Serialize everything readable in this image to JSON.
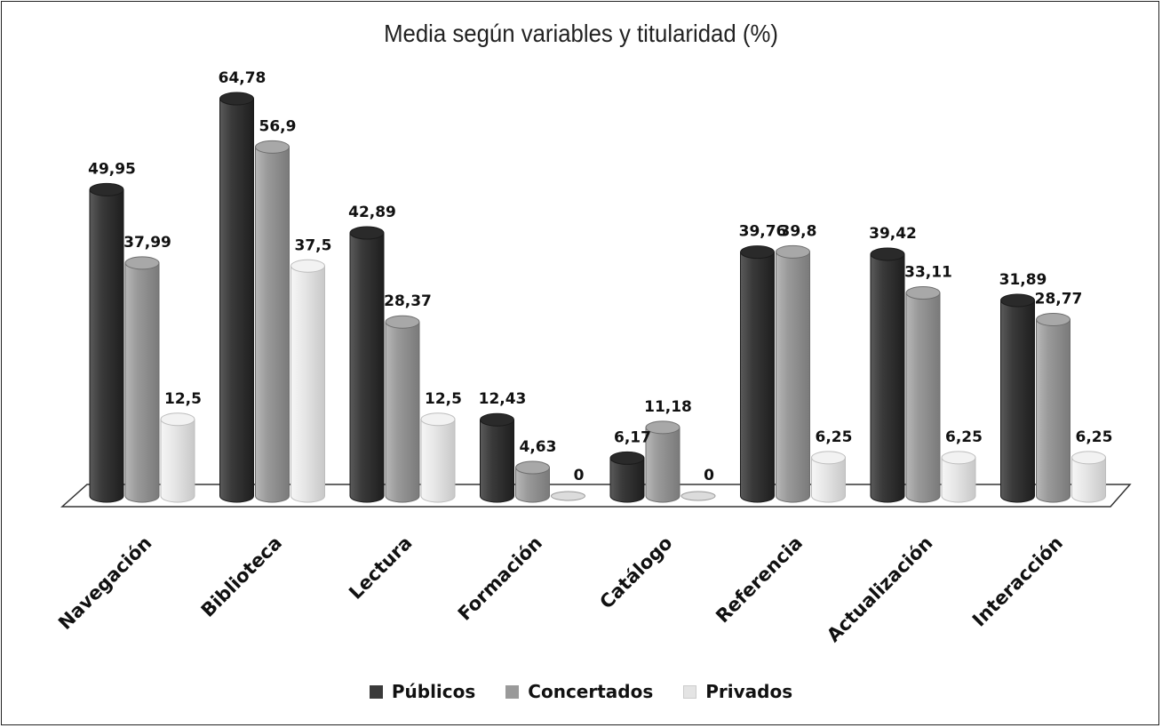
{
  "chart_data": {
    "type": "bar",
    "title": "Media según variables y titularidad (%)",
    "categories": [
      "Navegación",
      "Biblioteca",
      "Lectura",
      "Formación",
      "Catálogo",
      "Referencia",
      "Actualización",
      "Interacción"
    ],
    "series": [
      {
        "name": "Públicos",
        "color": "#3a3a3a",
        "values": [
          49.95,
          64.78,
          42.89,
          12.43,
          6.17,
          39.76,
          39.42,
          31.89
        ],
        "labels": [
          "49,95",
          "64,78",
          "42,89",
          "12,43",
          "6,17",
          "39,76",
          "39,42",
          "31,89"
        ]
      },
      {
        "name": "Concertados",
        "color": "#9a9a9a",
        "values": [
          37.99,
          56.9,
          28.37,
          4.63,
          11.18,
          39.8,
          33.11,
          28.77
        ],
        "labels": [
          "37,99",
          "56,9",
          "28,37",
          "4,63",
          "11,18",
          "39,8",
          "33,11",
          "28,77"
        ]
      },
      {
        "name": "Privados",
        "color": "#e4e4e4",
        "values": [
          12.5,
          37.5,
          12.5,
          0,
          0,
          6.25,
          6.25,
          6.25
        ],
        "labels": [
          "12,5",
          "37,5",
          "12,5",
          "0",
          "0",
          "6,25",
          "6,25",
          "6,25"
        ]
      }
    ],
    "ylim": [
      0,
      70
    ],
    "grid": false,
    "legend_position": "bottom"
  }
}
